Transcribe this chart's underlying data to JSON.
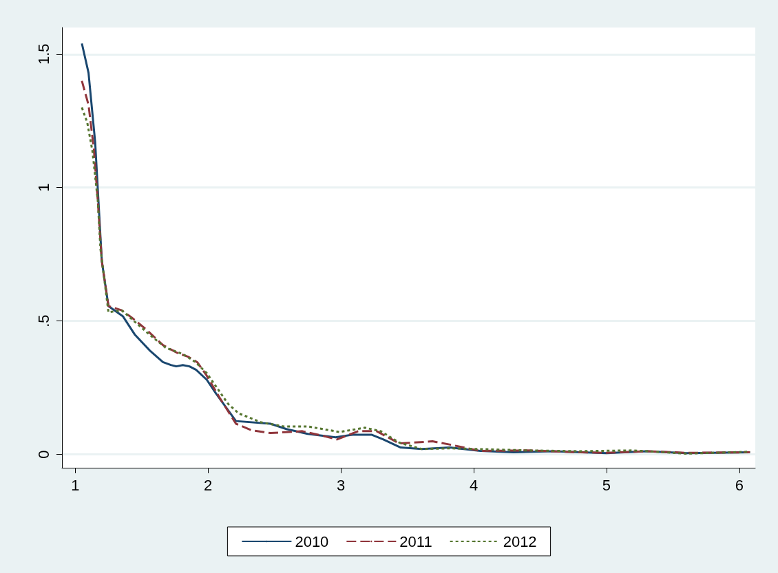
{
  "chart_data": {
    "type": "line",
    "marker": "none",
    "grid": "y",
    "legend": "bottom",
    "xlim": [
      0.9,
      6.12
    ],
    "xticks": [
      1,
      2,
      3,
      4,
      5,
      6
    ],
    "ylim": [
      -0.05,
      1.6
    ],
    "yticks": [
      0,
      {
        "value": 0.5,
        "label": ".5"
      },
      1,
      1.5
    ],
    "series": [
      {
        "name": "2010",
        "color": "#1a476f",
        "line_style": "solid",
        "x": [
          1.05,
          1.1,
          1.15,
          1.2,
          1.25,
          1.36,
          1.45,
          1.56,
          1.66,
          1.72,
          1.76,
          1.81,
          1.86,
          1.91,
          1.99,
          2.06,
          2.21,
          2.47,
          2.59,
          2.75,
          2.96,
          3.09,
          3.23,
          3.32,
          3.45,
          3.61,
          3.82,
          4.05,
          4.3,
          4.6,
          5.0,
          5.3,
          5.6,
          6.08
        ],
        "values": [
          1.54,
          1.43,
          1.17,
          0.725,
          0.556,
          0.517,
          0.448,
          0.39,
          0.346,
          0.335,
          0.33,
          0.335,
          0.33,
          0.317,
          0.28,
          0.228,
          0.125,
          0.115,
          0.095,
          0.077,
          0.064,
          0.074,
          0.074,
          0.056,
          0.026,
          0.02,
          0.026,
          0.013,
          0.008,
          0.012,
          0.005,
          0.012,
          0.005,
          0.008
        ]
      },
      {
        "name": "2011",
        "color": "#90353b",
        "line_style": "dashed",
        "x": [
          1.05,
          1.1,
          1.14,
          1.17,
          1.2,
          1.25,
          1.35,
          1.42,
          1.53,
          1.66,
          1.77,
          1.85,
          1.92,
          1.99,
          2.09,
          2.21,
          2.33,
          2.47,
          2.71,
          2.87,
          2.97,
          3.13,
          3.27,
          3.44,
          3.69,
          3.81,
          4.05,
          4.4,
          4.8,
          5.0,
          5.3,
          5.6,
          6.08
        ],
        "values": [
          1.4,
          1.31,
          1.145,
          0.95,
          0.725,
          0.556,
          0.54,
          0.515,
          0.47,
          0.41,
          0.38,
          0.366,
          0.345,
          0.295,
          0.21,
          0.115,
          0.09,
          0.08,
          0.087,
          0.069,
          0.056,
          0.087,
          0.087,
          0.041,
          0.049,
          0.038,
          0.013,
          0.015,
          0.008,
          0.006,
          0.012,
          0.006,
          0.008
        ]
      },
      {
        "name": "2012",
        "color": "#55752f",
        "line_style": "dotted",
        "x": [
          1.05,
          1.09,
          1.13,
          1.17,
          1.19,
          1.25,
          1.35,
          1.55,
          1.68,
          1.81,
          1.9,
          1.99,
          2.15,
          2.23,
          2.4,
          2.57,
          2.75,
          2.99,
          3.18,
          3.3,
          3.44,
          3.61,
          3.82,
          4.04,
          4.4,
          4.8,
          5.2,
          5.6,
          6.08
        ],
        "values": [
          1.3,
          1.245,
          1.135,
          0.95,
          0.77,
          0.533,
          0.54,
          0.453,
          0.4,
          0.376,
          0.348,
          0.305,
          0.19,
          0.154,
          0.12,
          0.105,
          0.105,
          0.084,
          0.1,
          0.087,
          0.044,
          0.02,
          0.023,
          0.02,
          0.015,
          0.012,
          0.015,
          0.003,
          0.01
        ]
      }
    ]
  }
}
